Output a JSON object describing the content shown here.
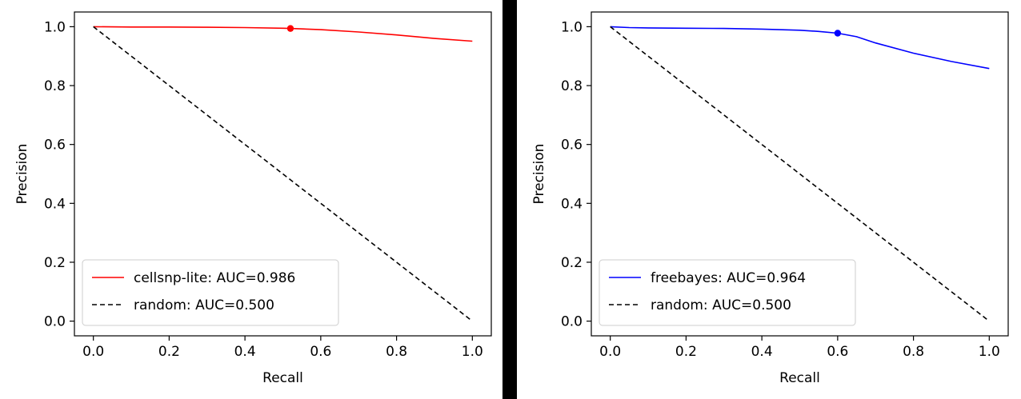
{
  "chart_data": [
    {
      "type": "line",
      "xlabel": "Recall",
      "ylabel": "Precision",
      "xlim": [
        -0.05,
        1.05
      ],
      "ylim": [
        -0.05,
        1.05
      ],
      "xticks": [
        "0.0",
        "0.2",
        "0.4",
        "0.6",
        "0.8",
        "1.0"
      ],
      "yticks": [
        "0.0",
        "0.2",
        "0.4",
        "0.6",
        "0.8",
        "1.0"
      ],
      "legend_position": "lower-left",
      "grid": false,
      "series": [
        {
          "name": "cellsnp-lite: AUC=0.986",
          "color": "#ff0000",
          "style": "solid",
          "x": [
            0.0,
            0.1,
            0.2,
            0.3,
            0.4,
            0.5,
            0.52,
            0.6,
            0.7,
            0.8,
            0.9,
            1.0
          ],
          "y": [
            1.0,
            0.999,
            0.999,
            0.998,
            0.997,
            0.995,
            0.994,
            0.99,
            0.982,
            0.972,
            0.96,
            0.951
          ]
        },
        {
          "name": "random: AUC=0.500",
          "color": "#000000",
          "style": "dashed",
          "x": [
            0.0,
            1.0
          ],
          "y": [
            1.0,
            0.0
          ]
        }
      ],
      "marker": {
        "x": 0.52,
        "y": 0.994,
        "color": "#ff0000"
      }
    },
    {
      "type": "line",
      "xlabel": "Recall",
      "ylabel": "Precision",
      "xlim": [
        -0.05,
        1.05
      ],
      "ylim": [
        -0.05,
        1.05
      ],
      "xticks": [
        "0.0",
        "0.2",
        "0.4",
        "0.6",
        "0.8",
        "1.0"
      ],
      "yticks": [
        "0.0",
        "0.2",
        "0.4",
        "0.6",
        "0.8",
        "1.0"
      ],
      "legend_position": "lower-left",
      "grid": false,
      "series": [
        {
          "name": "freebayes: AUC=0.964",
          "color": "#0000ff",
          "style": "solid",
          "x": [
            0.0,
            0.05,
            0.1,
            0.2,
            0.3,
            0.4,
            0.5,
            0.55,
            0.6,
            0.65,
            0.7,
            0.8,
            0.9,
            1.0
          ],
          "y": [
            1.0,
            0.997,
            0.996,
            0.995,
            0.994,
            0.992,
            0.988,
            0.984,
            0.978,
            0.966,
            0.945,
            0.91,
            0.882,
            0.858
          ]
        },
        {
          "name": "random: AUC=0.500",
          "color": "#000000",
          "style": "dashed",
          "x": [
            0.0,
            1.0
          ],
          "y": [
            1.0,
            0.0
          ]
        }
      ],
      "marker": {
        "x": 0.6,
        "y": 0.978,
        "color": "#0000ff"
      }
    }
  ]
}
